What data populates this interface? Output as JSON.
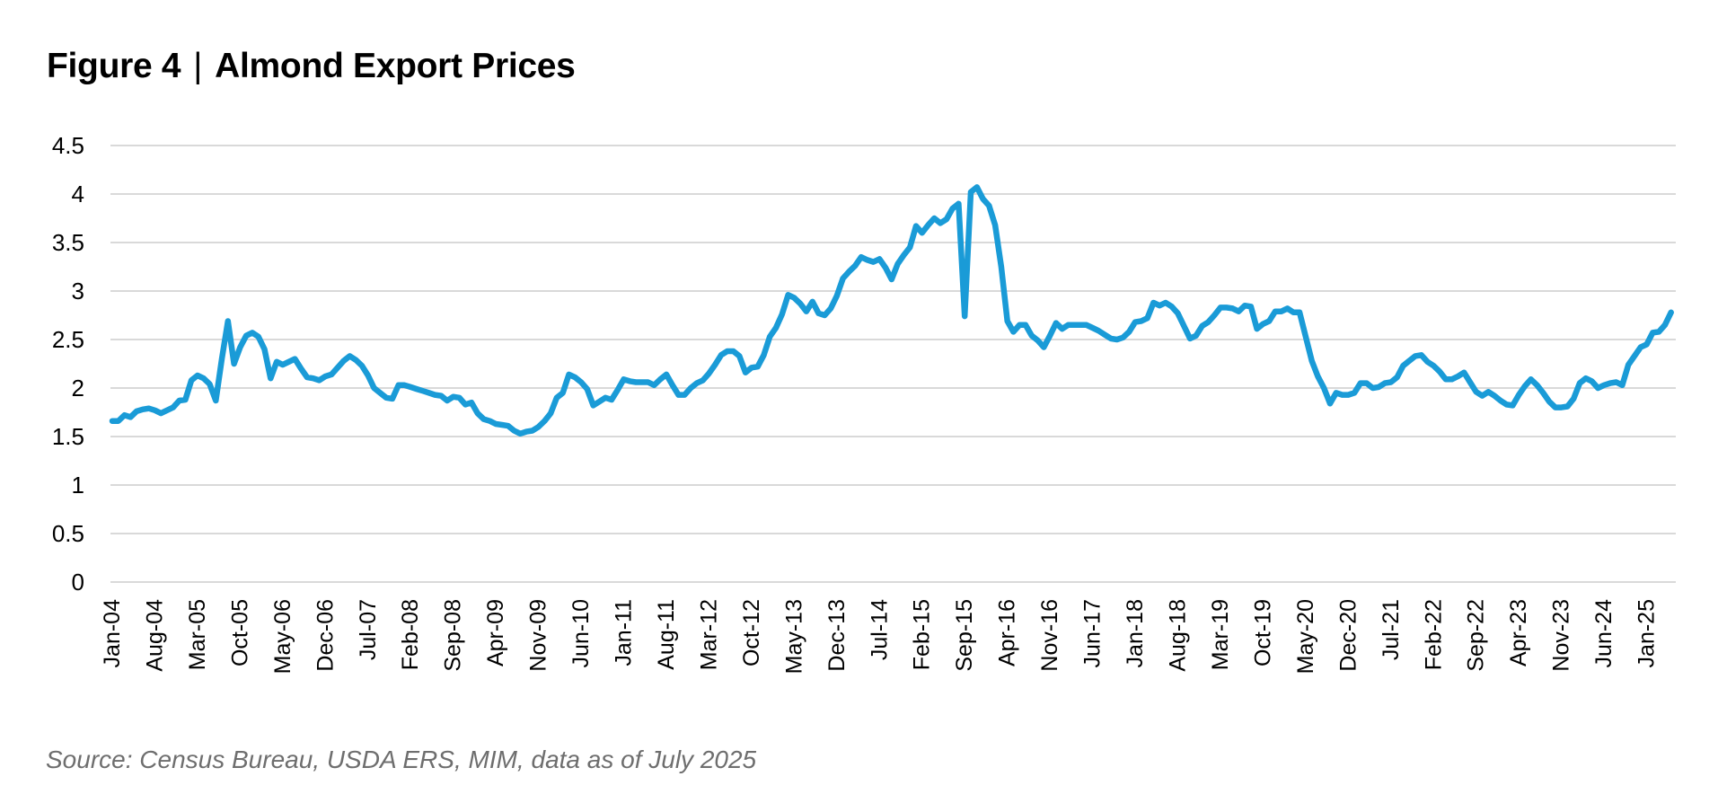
{
  "title": {
    "figure_label": "Figure 4",
    "separator": "|",
    "text": "Almond Export Prices"
  },
  "source": "Source: Census Bureau, USDA ERS, MIM, data as of July 2025",
  "colors": {
    "line": "#1a9bd7",
    "grid": "#d9d9d9",
    "axis_text": "#000000",
    "source_text": "#6e6e6e"
  },
  "chart_data": {
    "type": "line",
    "title": "Figure 4 | Almond Export Prices",
    "xlabel": "",
    "ylabel": "",
    "ylim": [
      0,
      4.5
    ],
    "yticks": [
      0,
      0.5,
      1,
      1.5,
      2,
      2.5,
      3,
      3.5,
      4,
      4.5
    ],
    "ytick_labels": [
      "0",
      "0.5",
      "1",
      "1.5",
      "2",
      "2.5",
      "3",
      "3.5",
      "4",
      "4.5"
    ],
    "grid": true,
    "legend": null,
    "x_start": "Jan-04",
    "x_frequency": "monthly",
    "xtick_labels": [
      "Jan-04",
      "Aug-04",
      "Mar-05",
      "Oct-05",
      "May-06",
      "Dec-06",
      "Jul-07",
      "Feb-08",
      "Sep-08",
      "Apr-09",
      "Nov-09",
      "Jun-10",
      "Jan-11",
      "Aug-11",
      "Mar-12",
      "Oct-12",
      "May-13",
      "Dec-13",
      "Jul-14",
      "Feb-15",
      "Sep-15",
      "Apr-16",
      "Nov-16",
      "Jun-17",
      "Jan-18",
      "Aug-18",
      "Mar-19",
      "Oct-19",
      "May-20",
      "Dec-20",
      "Jul-21",
      "Feb-22",
      "Sep-22",
      "Apr-23",
      "Nov-23",
      "Jun-24",
      "Jan-25"
    ],
    "xtick_every_n_months": 7,
    "series": [
      {
        "name": "Almond Export Price",
        "values": [
          1.66,
          1.66,
          1.72,
          1.7,
          1.76,
          1.78,
          1.79,
          1.77,
          1.74,
          1.77,
          1.8,
          1.87,
          1.88,
          2.08,
          2.13,
          2.1,
          2.04,
          1.87,
          2.3,
          2.69,
          2.25,
          2.42,
          2.54,
          2.57,
          2.53,
          2.4,
          2.1,
          2.27,
          2.24,
          2.27,
          2.3,
          2.2,
          2.11,
          2.1,
          2.08,
          2.12,
          2.14,
          2.21,
          2.28,
          2.33,
          2.29,
          2.23,
          2.13,
          2.0,
          1.95,
          1.9,
          1.89,
          2.03,
          2.03,
          2.01,
          1.99,
          1.97,
          1.95,
          1.93,
          1.92,
          1.87,
          1.91,
          1.9,
          1.83,
          1.85,
          1.74,
          1.68,
          1.66,
          1.63,
          1.62,
          1.61,
          1.56,
          1.53,
          1.55,
          1.56,
          1.6,
          1.66,
          1.74,
          1.9,
          1.95,
          2.14,
          2.11,
          2.06,
          1.99,
          1.82,
          1.86,
          1.9,
          1.88,
          1.98,
          2.09,
          2.07,
          2.06,
          2.06,
          2.06,
          2.03,
          2.09,
          2.14,
          2.03,
          1.93,
          1.93,
          2.0,
          2.05,
          2.08,
          2.15,
          2.24,
          2.34,
          2.38,
          2.38,
          2.33,
          2.16,
          2.21,
          2.22,
          2.34,
          2.53,
          2.62,
          2.76,
          2.96,
          2.93,
          2.87,
          2.79,
          2.89,
          2.77,
          2.75,
          2.82,
          2.95,
          3.13,
          3.2,
          3.26,
          3.35,
          3.32,
          3.3,
          3.33,
          3.24,
          3.12,
          3.28,
          3.37,
          3.45,
          3.67,
          3.6,
          3.68,
          3.75,
          3.7,
          3.74,
          3.85,
          3.9,
          2.74,
          4.02,
          4.07,
          3.95,
          3.88,
          3.68,
          3.25,
          2.69,
          2.58,
          2.65,
          2.65,
          2.54,
          2.49,
          2.42,
          2.54,
          2.67,
          2.61,
          2.65,
          2.65,
          2.65,
          2.65,
          2.62,
          2.59,
          2.55,
          2.51,
          2.5,
          2.52,
          2.58,
          2.68,
          2.69,
          2.72,
          2.88,
          2.85,
          2.88,
          2.84,
          2.77,
          2.64,
          2.51,
          2.54,
          2.64,
          2.68,
          2.75,
          2.83,
          2.83,
          2.82,
          2.79,
          2.85,
          2.84,
          2.61,
          2.66,
          2.69,
          2.79,
          2.79,
          2.82,
          2.78,
          2.78,
          2.53,
          2.28,
          2.12,
          2.0,
          1.84,
          1.95,
          1.93,
          1.93,
          1.95,
          2.05,
          2.05,
          2.0,
          2.01,
          2.05,
          2.06,
          2.11,
          2.23,
          2.28,
          2.33,
          2.34,
          2.27,
          2.23,
          2.17,
          2.09,
          2.09,
          2.12,
          2.16,
          2.06,
          1.96,
          1.92,
          1.96,
          1.92,
          1.87,
          1.83,
          1.82,
          1.93,
          2.02,
          2.09,
          2.03,
          1.95,
          1.86,
          1.8,
          1.8,
          1.81,
          1.89,
          2.05,
          2.1,
          2.07,
          2.0,
          2.03,
          2.05,
          2.06,
          2.03,
          2.24,
          2.33,
          2.42,
          2.45,
          2.57,
          2.58,
          2.65,
          2.78
        ]
      }
    ]
  }
}
